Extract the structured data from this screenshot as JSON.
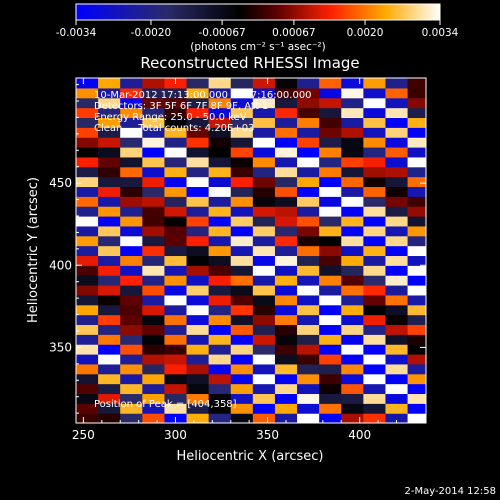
{
  "chart_data": {
    "type": "heatmap",
    "title": "Reconstructed RHESSI Image",
    "xlabel": "Heliocentric X (arcsec)",
    "ylabel": "Heliocentric Y (arcsec)",
    "xlim": [
      246,
      436
    ],
    "ylim": [
      304,
      514
    ],
    "x_ticks": [
      250,
      300,
      350,
      400
    ],
    "y_ticks": [
      350,
      400,
      450
    ],
    "colorbar": {
      "range": [
        -0.0034,
        0.0034
      ],
      "ticks": [
        -0.0034,
        -0.002,
        -0.00067,
        0.00067,
        0.002,
        0.0034
      ],
      "tick_labels": [
        "-0.0034",
        "-0.0020",
        "-0.00067",
        "0.00067",
        "0.0020",
        "0.0034"
      ],
      "units": "(photons cm⁻² s⁻¹ asec⁻²)"
    },
    "annotations": [
      "10-Mar-2012 17:13:00.000 to 17:16:00.000",
      "Detectors: 3F 5F 6F 7F 8F 9F, Att 1",
      "Energy Range: 25.0 - 50.0 keV",
      "Clean     Total counts: 4.20E+03",
      "Position of Peak = [404,358]"
    ],
    "peak_position": [
      404,
      358
    ],
    "band_pattern": {
      "description_source": "diagonal fringe stripes from upper-left to lower-right",
      "slope_y_per_x": -0.45,
      "period_y": 13,
      "peak": [
        404,
        358
      ]
    },
    "colors": [
      "#0000ff",
      "#1a1a55",
      "#000000",
      "#7a0000",
      "#ff0000",
      "#ffaa00",
      "#ffffff"
    ]
  },
  "footer": {
    "date": "2-May-2014 12:58"
  }
}
